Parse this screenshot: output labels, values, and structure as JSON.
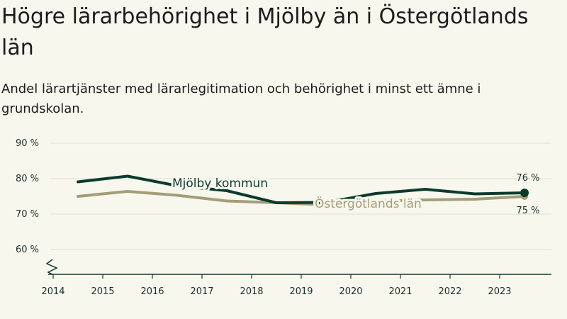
{
  "title": "Högre lärarbehörighet i Mjölby än i Östergötlands län",
  "subtitle": "Andel lärartjänster med lärarlegitimation och behörighet i minst ett ämne i grundskolan.",
  "colors": {
    "background": "#f8f7ee",
    "mjolby": "#0c3b2e",
    "ostergotland": "#a39d78",
    "grid": "#dcdcd0",
    "axis": "#0c3b2e"
  },
  "chart_data": {
    "type": "line",
    "title": "Högre lärarbehörighet i Mjölby än i Östergötlands län",
    "subtitle": "Andel lärartjänster med lärarlegitimation och behörighet i minst ett ämne i grundskolan.",
    "x_ticks": [
      "2014",
      "2015",
      "2016",
      "2017",
      "2018",
      "2019",
      "2020",
      "2021",
      "2022",
      "2023"
    ],
    "y_ticks": [
      {
        "value": 90,
        "label": "90 %"
      },
      {
        "value": 80,
        "label": "80 %"
      },
      {
        "value": 70,
        "label": "70 %"
      },
      {
        "value": 60,
        "label": "60 %"
      }
    ],
    "ylim": [
      55,
      92
    ],
    "xlim": [
      2014,
      2024
    ],
    "axis_break": true,
    "series": [
      {
        "name": "Mjölby kommun",
        "x": [
          2014.5,
          2015.5,
          2016.5,
          2017.5,
          2018.5,
          2019.5,
          2020.5,
          2021.5,
          2022.5,
          2023.5
        ],
        "values": [
          79.1,
          80.7,
          78.0,
          76.6,
          73.2,
          73.3,
          75.8,
          77.0,
          75.7,
          76.0
        ],
        "end_label": "76 %"
      },
      {
        "name": "Östergötlands län",
        "x": [
          2014.5,
          2015.5,
          2016.5,
          2017.5,
          2018.5,
          2019.5,
          2020.5,
          2021.5,
          2022.5,
          2023.5
        ],
        "values": [
          75.0,
          76.4,
          75.3,
          73.7,
          73.2,
          72.6,
          73.6,
          74.0,
          74.2,
          75.0
        ],
        "end_label": "75 %"
      }
    ]
  }
}
